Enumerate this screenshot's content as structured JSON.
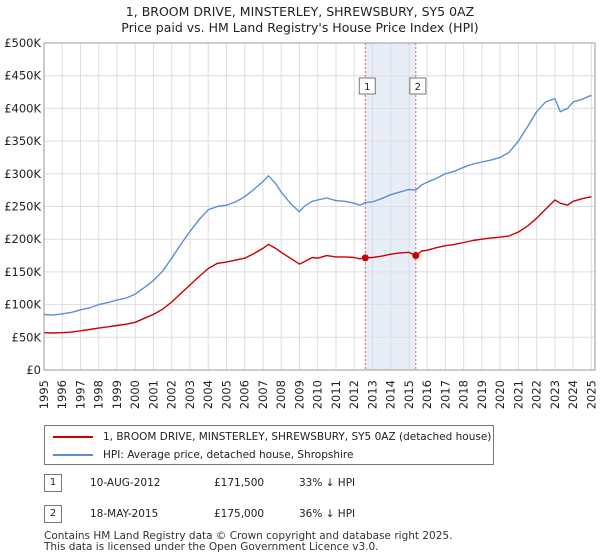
{
  "title_line1": "1, BROOM DRIVE, MINSTERLEY, SHREWSBURY, SY5 0AZ",
  "title_line2": "Price paid vs. HM Land Registry's House Price Index (HPI)",
  "colors": {
    "red": "#cc0000",
    "blue": "#5b8fd4",
    "band": "#e8eef8",
    "grid": "#dddddd",
    "vline": "#e06060"
  },
  "chart_data": {
    "type": "line",
    "title": "Price paid vs. HM Land Registry's House Price Index (HPI)",
    "xlabel": "",
    "ylabel": "",
    "xlim": [
      1995,
      2025.2
    ],
    "ylim": [
      0,
      500000
    ],
    "y_ticks": [
      0,
      50000,
      100000,
      150000,
      200000,
      250000,
      300000,
      350000,
      400000,
      450000,
      500000
    ],
    "y_tick_labels": [
      "£0",
      "£50K",
      "£100K",
      "£150K",
      "£200K",
      "£250K",
      "£300K",
      "£350K",
      "£400K",
      "£450K",
      "£500K"
    ],
    "x_ticks": [
      1995,
      1996,
      1997,
      1998,
      1999,
      2000,
      2001,
      2002,
      2003,
      2004,
      2005,
      2006,
      2007,
      2008,
      2009,
      2010,
      2011,
      2012,
      2013,
      2014,
      2015,
      2016,
      2017,
      2018,
      2019,
      2020,
      2021,
      2022,
      2023,
      2024,
      2025
    ],
    "highlight_band": [
      2012.61,
      2015.38
    ],
    "series": [
      {
        "name": "1, BROOM DRIVE, MINSTERLEY, SHREWSBURY, SY5 0AZ (detached house)",
        "color": "#cc0000",
        "x": [
          1995,
          1995.5,
          1996,
          1996.5,
          1997,
          1997.5,
          1998,
          1998.5,
          1999,
          1999.5,
          2000,
          2000.5,
          2001,
          2001.5,
          2002,
          2002.5,
          2003,
          2003.5,
          2004,
          2004.5,
          2005,
          2005.5,
          2006,
          2006.5,
          2007,
          2007.3,
          2007.7,
          2008,
          2008.5,
          2009,
          2009.3,
          2009.7,
          2010,
          2010.5,
          2011,
          2011.5,
          2012,
          2012.3,
          2012.61,
          2013,
          2013.5,
          2014,
          2014.5,
          2015,
          2015.38,
          2015.7,
          2016,
          2016.5,
          2017,
          2017.5,
          2018,
          2018.5,
          2019,
          2019.5,
          2020,
          2020.5,
          2021,
          2021.5,
          2022,
          2022.5,
          2023,
          2023.3,
          2023.7,
          2024,
          2024.5,
          2025
        ],
        "values": [
          57000,
          56500,
          57000,
          58000,
          60000,
          62000,
          64000,
          66000,
          68000,
          70000,
          73000,
          79000,
          85000,
          93000,
          104000,
          117000,
          130000,
          143000,
          155000,
          163000,
          165000,
          168000,
          171000,
          178000,
          186000,
          192000,
          186000,
          180000,
          171000,
          162000,
          166000,
          172000,
          171000,
          175000,
          173000,
          173000,
          172000,
          170000,
          171500,
          172000,
          174000,
          177000,
          179000,
          180000,
          175000,
          182000,
          183000,
          187000,
          190000,
          192000,
          195000,
          198000,
          200000,
          202000,
          203000,
          205000,
          211000,
          220000,
          232000,
          246000,
          260000,
          255000,
          252000,
          258000,
          262000,
          265000
        ]
      },
      {
        "name": "HPI: Average price, detached house, Shropshire",
        "color": "#5b8fd4",
        "x": [
          1995,
          1995.5,
          1996,
          1996.5,
          1997,
          1997.5,
          1998,
          1998.5,
          1999,
          1999.5,
          2000,
          2000.5,
          2001,
          2001.5,
          2002,
          2002.5,
          2003,
          2003.5,
          2004,
          2004.5,
          2005,
          2005.5,
          2006,
          2006.5,
          2007,
          2007.3,
          2007.7,
          2008,
          2008.5,
          2009,
          2009.3,
          2009.7,
          2010,
          2010.5,
          2011,
          2011.5,
          2012,
          2012.3,
          2012.61,
          2013,
          2013.5,
          2014,
          2014.5,
          2015,
          2015.38,
          2015.7,
          2016,
          2016.5,
          2017,
          2017.5,
          2018,
          2018.5,
          2019,
          2019.5,
          2020,
          2020.5,
          2021,
          2021.5,
          2022,
          2022.5,
          2023,
          2023.3,
          2023.7,
          2024,
          2024.5,
          2025
        ],
        "values": [
          85000,
          84000,
          86000,
          88000,
          92000,
          95000,
          100000,
          103000,
          107000,
          110000,
          116000,
          126000,
          137000,
          151000,
          171000,
          192000,
          212000,
          230000,
          245000,
          250000,
          252000,
          257000,
          265000,
          276000,
          288000,
          297000,
          285000,
          272000,
          255000,
          242000,
          251000,
          258000,
          260000,
          263000,
          259000,
          258000,
          255000,
          252000,
          256000,
          257000,
          262000,
          268000,
          272000,
          276000,
          275000,
          283000,
          287000,
          293000,
          300000,
          304000,
          310000,
          315000,
          318000,
          321000,
          325000,
          333000,
          350000,
          372000,
          395000,
          410000,
          415000,
          395000,
          400000,
          410000,
          414000,
          420000
        ]
      }
    ],
    "sales": [
      {
        "label": "1",
        "x": 2012.61,
        "value": 171500
      },
      {
        "label": "2",
        "x": 2015.38,
        "value": 175000
      }
    ]
  },
  "legend": {
    "property": "1, BROOM DRIVE, MINSTERLEY, SHREWSBURY, SY5 0AZ (detached house)",
    "hpi": "HPI: Average price, detached house, Shropshire"
  },
  "sales_table": [
    {
      "num": "1",
      "date": "10-AUG-2012",
      "price": "£171,500",
      "delta": "33% ↓ HPI"
    },
    {
      "num": "2",
      "date": "18-MAY-2015",
      "price": "£175,000",
      "delta": "36% ↓ HPI"
    }
  ],
  "footer": {
    "line1": "Contains HM Land Registry data © Crown copyright and database right 2025.",
    "line2": "This data is licensed under the Open Government Licence v3.0."
  }
}
